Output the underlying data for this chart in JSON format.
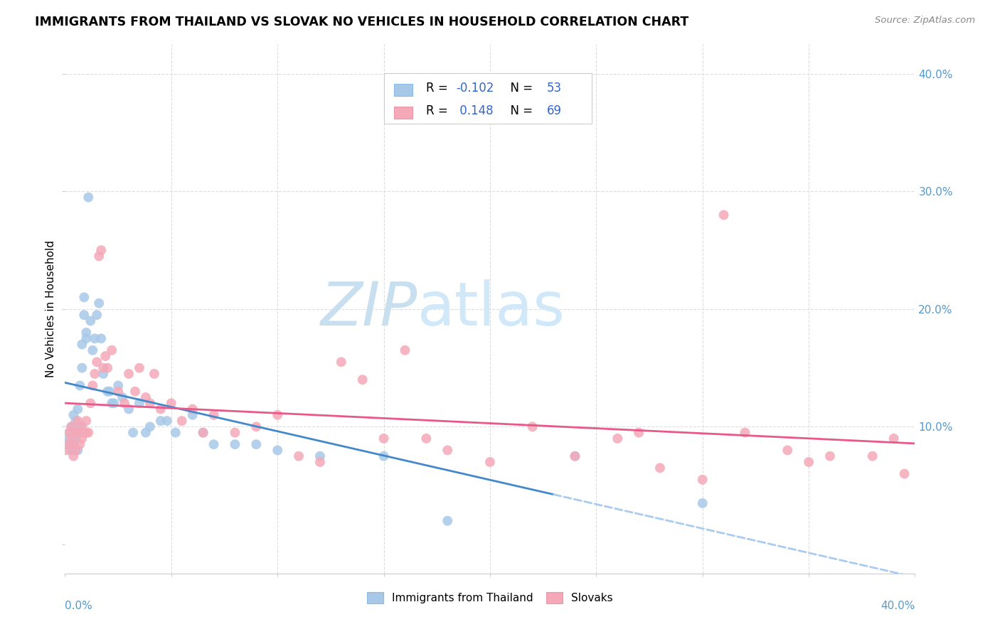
{
  "title": "IMMIGRANTS FROM THAILAND VS SLOVAK NO VEHICLES IN HOUSEHOLD CORRELATION CHART",
  "source": "Source: ZipAtlas.com",
  "ylabel": "No Vehicles in Household",
  "ytick_vals": [
    0,
    0.1,
    0.2,
    0.3,
    0.4
  ],
  "ytick_labels": [
    "",
    "10.0%",
    "20.0%",
    "30.0%",
    "40.0%"
  ],
  "xlim": [
    0,
    0.4
  ],
  "ylim": [
    -0.025,
    0.425
  ],
  "color_blue": "#a8c8e8",
  "color_pink": "#f4a8b8",
  "color_blue_line": "#4488cc",
  "color_pink_line": "#e85888",
  "color_blue_dashed": "#aaccee",
  "color_axis": "#5599cc",
  "grid_color": "#dddddd",
  "watermark_zip_color": "#c8dff0",
  "watermark_atlas_color": "#d0e8f8"
}
